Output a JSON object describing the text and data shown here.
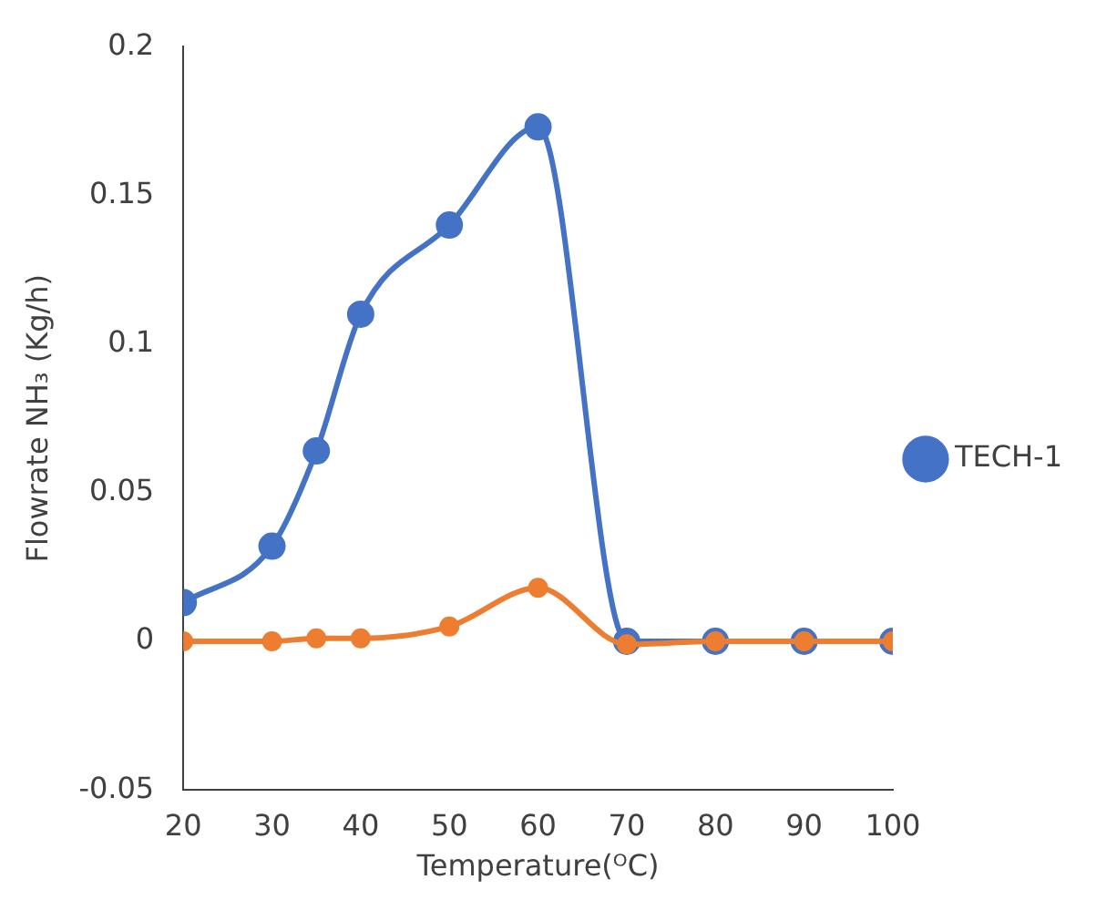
{
  "chart_data": {
    "type": "line",
    "xlabel": "Temperature(ᴼC)",
    "ylabel": "Flowrate NH₃ (Kg/h)",
    "x": [
      20,
      30,
      35,
      40,
      50,
      60,
      70,
      80,
      90,
      100
    ],
    "series": [
      {
        "name": "TECH-1",
        "color": "#4472c4",
        "values": [
          0.013,
          0.032,
          0.064,
          0.11,
          0.14,
          0.173,
          0,
          0,
          0,
          0
        ]
      },
      {
        "color": "#ed7d31",
        "values": [
          0,
          0,
          0.001,
          0.001,
          0.005,
          0.018,
          -0.001,
          0,
          0,
          0
        ]
      }
    ],
    "xlim": [
      20,
      100
    ],
    "xticks": [
      20,
      30,
      40,
      50,
      60,
      70,
      80,
      90,
      100
    ],
    "ylim": [
      -0.05,
      0.2
    ],
    "yticks": [
      -0.05,
      0,
      0.05,
      0.1,
      0.15,
      0.2
    ],
    "grid": false,
    "legend": "right",
    "marker": "circle",
    "line_style": "solid"
  }
}
